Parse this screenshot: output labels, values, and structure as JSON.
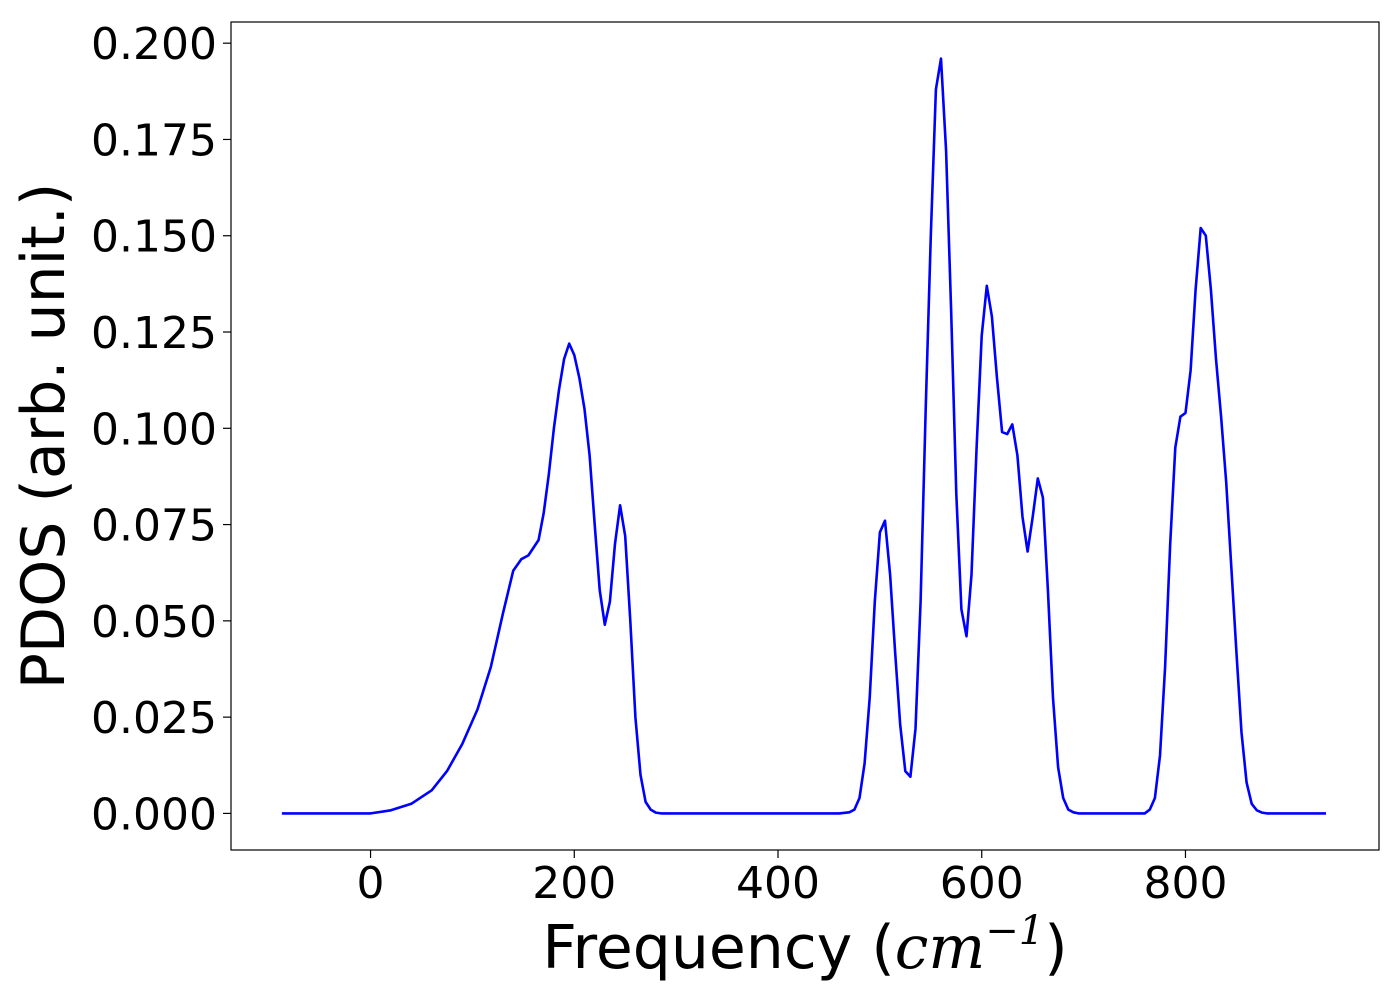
{
  "chart_data": {
    "type": "line",
    "xlabel_text": "Frequency (",
    "xlabel_math": "cm",
    "xlabel_sup": "−1",
    "xlabel_close": ")",
    "ylabel": "PDOS (arb. unit.)",
    "xlim": [
      -137,
      990
    ],
    "ylim": [
      -0.0095,
      0.2055
    ],
    "xticks": [
      0,
      200,
      400,
      600,
      800
    ],
    "xtick_labels": [
      "0",
      "200",
      "400",
      "600",
      "800"
    ],
    "yticks": [
      0,
      0.025,
      0.05,
      0.075,
      0.1,
      0.125,
      0.15,
      0.175,
      0.2
    ],
    "ytick_labels": [
      "0.000",
      "0.025",
      "0.050",
      "0.075",
      "0.100",
      "0.125",
      "0.150",
      "0.175",
      "0.200"
    ],
    "grid": false,
    "line_color": "#0000ff",
    "series": [
      {
        "x": [
          -87,
          0,
          20,
          40,
          60,
          75,
          90,
          105,
          118,
          130,
          140,
          148,
          155,
          165,
          170,
          175,
          180,
          185,
          190,
          195,
          200,
          205,
          210,
          215,
          220,
          225,
          230,
          235,
          240,
          245,
          250,
          255,
          260,
          265,
          270,
          275,
          280,
          285,
          290,
          300,
          460,
          470,
          475,
          480,
          485,
          490,
          495,
          500,
          505,
          510,
          515,
          520,
          525,
          530,
          535,
          540,
          545,
          550,
          555,
          560,
          565,
          570,
          575,
          580,
          585,
          590,
          595,
          600,
          605,
          610,
          615,
          620,
          625,
          630,
          635,
          640,
          645,
          650,
          655,
          660,
          665,
          670,
          675,
          680,
          685,
          690,
          695,
          700,
          760,
          765,
          770,
          775,
          780,
          785,
          790,
          795,
          800,
          805,
          810,
          815,
          820,
          825,
          830,
          835,
          840,
          845,
          850,
          855,
          860,
          865,
          870,
          875,
          880,
          938
        ],
        "y": [
          0,
          0,
          0.0008,
          0.0025,
          0.006,
          0.011,
          0.018,
          0.027,
          0.038,
          0.052,
          0.063,
          0.066,
          0.067,
          0.071,
          0.078,
          0.088,
          0.1,
          0.11,
          0.118,
          0.122,
          0.119,
          0.113,
          0.105,
          0.093,
          0.075,
          0.058,
          0.049,
          0.055,
          0.07,
          0.08,
          0.072,
          0.05,
          0.025,
          0.01,
          0.003,
          0.001,
          0.0002,
          0,
          0,
          0,
          0,
          0.0003,
          0.001,
          0.004,
          0.013,
          0.03,
          0.055,
          0.073,
          0.076,
          0.062,
          0.042,
          0.023,
          0.011,
          0.0095,
          0.022,
          0.055,
          0.105,
          0.15,
          0.188,
          0.196,
          0.172,
          0.13,
          0.083,
          0.053,
          0.046,
          0.062,
          0.095,
          0.124,
          0.137,
          0.129,
          0.113,
          0.099,
          0.0985,
          0.101,
          0.093,
          0.077,
          0.068,
          0.077,
          0.087,
          0.082,
          0.058,
          0.03,
          0.012,
          0.004,
          0.001,
          0.0003,
          0,
          0,
          0,
          0.001,
          0.004,
          0.015,
          0.038,
          0.07,
          0.095,
          0.103,
          0.104,
          0.115,
          0.136,
          0.152,
          0.15,
          0.136,
          0.118,
          0.103,
          0.086,
          0.064,
          0.042,
          0.021,
          0.008,
          0.0025,
          0.0008,
          0.0002,
          0,
          0
        ]
      }
    ]
  }
}
